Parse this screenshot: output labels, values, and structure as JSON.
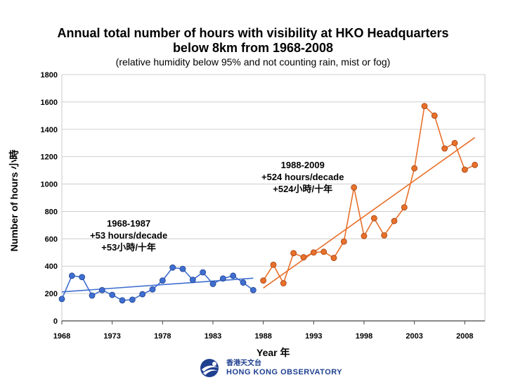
{
  "chart_data": {
    "type": "scatter",
    "title_line1": "Annual total number of hours with visibility at HKO Headquarters",
    "title_line2": "below 8km from 1968-2008",
    "subtitle": "(relative humidity below 95% and not counting rain, mist or fog)",
    "ylabel": "Number of hours 小時",
    "xlabel": "Year 年",
    "xlim": [
      1968,
      2010
    ],
    "ylim": [
      0,
      1800
    ],
    "yticks": [
      0,
      200,
      400,
      600,
      800,
      1000,
      1200,
      1400,
      1600,
      1800
    ],
    "xticks": [
      1968,
      1973,
      1978,
      1983,
      1988,
      1993,
      1998,
      2003,
      2008
    ],
    "grid": true,
    "series": [
      {
        "name": "1968-1987",
        "color": "#3f6fd0",
        "stroke": "#1f3f90",
        "x": [
          1968,
          1969,
          1970,
          1971,
          1972,
          1973,
          1974,
          1975,
          1976,
          1977,
          1978,
          1979,
          1980,
          1981,
          1982,
          1983,
          1984,
          1985,
          1986,
          1987
        ],
        "values": [
          160,
          330,
          320,
          185,
          225,
          190,
          150,
          155,
          195,
          230,
          295,
          390,
          380,
          300,
          355,
          270,
          310,
          330,
          280,
          225
        ],
        "trend": {
          "x": [
            1968,
            1987
          ],
          "y": [
            212,
            312
          ]
        }
      },
      {
        "name": "1988-2009",
        "color": "#e8702a",
        "stroke": "#a04010",
        "x": [
          1988,
          1989,
          1990,
          1991,
          1992,
          1993,
          1994,
          1995,
          1996,
          1997,
          1998,
          1999,
          2000,
          2001,
          2002,
          2003,
          2004,
          2005,
          2006,
          2007,
          2008,
          2009
        ],
        "values": [
          295,
          410,
          275,
          495,
          465,
          500,
          505,
          460,
          580,
          975,
          620,
          750,
          625,
          730,
          830,
          1115,
          1570,
          1500,
          1260,
          1300,
          1105,
          1140
        ],
        "trend": {
          "x": [
            1988,
            2009
          ],
          "y": [
            240,
            1340
          ]
        }
      }
    ],
    "annotations": [
      {
        "lines": [
          "1968-1987",
          "+53 hours/decade",
          "+53小時/十年"
        ]
      },
      {
        "lines": [
          "1988-2009",
          "+524 hours/decade",
          "+524小時/十年"
        ]
      }
    ]
  },
  "logo": {
    "name_zh": "香港天文台",
    "name_en": "HONG KONG OBSERVATORY"
  }
}
